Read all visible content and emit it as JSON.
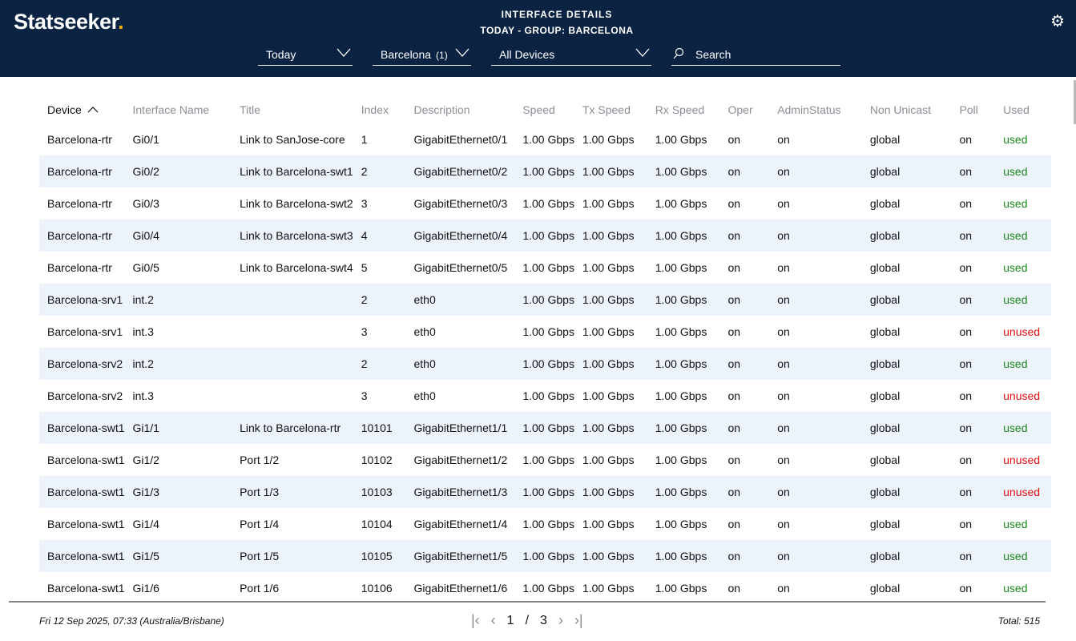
{
  "header": {
    "logo": "Statseeker",
    "title": "INTERFACE DETAILS",
    "subtitle": "TODAY - GROUP: BARCELONA"
  },
  "filters": {
    "time": "Today",
    "group": "Barcelona",
    "group_count": "(1)",
    "devices": "All Devices",
    "search_placeholder": "Search"
  },
  "columns": [
    "Device",
    "Interface Name",
    "Title",
    "Index",
    "Description",
    "Speed",
    "Tx Speed",
    "Rx Speed",
    "Oper",
    "AdminStatus",
    "Non Unicast",
    "Poll",
    "Used"
  ],
  "sort": {
    "column": "Device",
    "direction": "ascending"
  },
  "rows": [
    [
      "Barcelona-rtr",
      "Gi0/1",
      "Link to SanJose-core",
      "1",
      "GigabitEthernet0/1",
      "1.00 Gbps",
      "1.00 Gbps",
      "1.00 Gbps",
      "on",
      "on",
      "global",
      "on",
      "used"
    ],
    [
      "Barcelona-rtr",
      "Gi0/2",
      "Link to Barcelona-swt1",
      "2",
      "GigabitEthernet0/2",
      "1.00 Gbps",
      "1.00 Gbps",
      "1.00 Gbps",
      "on",
      "on",
      "global",
      "on",
      "used"
    ],
    [
      "Barcelona-rtr",
      "Gi0/3",
      "Link to Barcelona-swt2",
      "3",
      "GigabitEthernet0/3",
      "1.00 Gbps",
      "1.00 Gbps",
      "1.00 Gbps",
      "on",
      "on",
      "global",
      "on",
      "used"
    ],
    [
      "Barcelona-rtr",
      "Gi0/4",
      "Link to Barcelona-swt3",
      "4",
      "GigabitEthernet0/4",
      "1.00 Gbps",
      "1.00 Gbps",
      "1.00 Gbps",
      "on",
      "on",
      "global",
      "on",
      "used"
    ],
    [
      "Barcelona-rtr",
      "Gi0/5",
      "Link to Barcelona-swt4",
      "5",
      "GigabitEthernet0/5",
      "1.00 Gbps",
      "1.00 Gbps",
      "1.00 Gbps",
      "on",
      "on",
      "global",
      "on",
      "used"
    ],
    [
      "Barcelona-srv1",
      "int.2",
      "",
      "2",
      "eth0",
      "1.00 Gbps",
      "1.00 Gbps",
      "1.00 Gbps",
      "on",
      "on",
      "global",
      "on",
      "used"
    ],
    [
      "Barcelona-srv1",
      "int.3",
      "",
      "3",
      "eth0",
      "1.00 Gbps",
      "1.00 Gbps",
      "1.00 Gbps",
      "on",
      "on",
      "global",
      "on",
      "unused"
    ],
    [
      "Barcelona-srv2",
      "int.2",
      "",
      "2",
      "eth0",
      "1.00 Gbps",
      "1.00 Gbps",
      "1.00 Gbps",
      "on",
      "on",
      "global",
      "on",
      "used"
    ],
    [
      "Barcelona-srv2",
      "int.3",
      "",
      "3",
      "eth0",
      "1.00 Gbps",
      "1.00 Gbps",
      "1.00 Gbps",
      "on",
      "on",
      "global",
      "on",
      "unused"
    ],
    [
      "Barcelona-swt1",
      "Gi1/1",
      "Link to Barcelona-rtr",
      "10101",
      "GigabitEthernet1/1",
      "1.00 Gbps",
      "1.00 Gbps",
      "1.00 Gbps",
      "on",
      "on",
      "global",
      "on",
      "used"
    ],
    [
      "Barcelona-swt1",
      "Gi1/2",
      "Port 1/2",
      "10102",
      "GigabitEthernet1/2",
      "1.00 Gbps",
      "1.00 Gbps",
      "1.00 Gbps",
      "on",
      "on",
      "global",
      "on",
      "unused"
    ],
    [
      "Barcelona-swt1",
      "Gi1/3",
      "Port 1/3",
      "10103",
      "GigabitEthernet1/3",
      "1.00 Gbps",
      "1.00 Gbps",
      "1.00 Gbps",
      "on",
      "on",
      "global",
      "on",
      "unused"
    ],
    [
      "Barcelona-swt1",
      "Gi1/4",
      "Port 1/4",
      "10104",
      "GigabitEthernet1/4",
      "1.00 Gbps",
      "1.00 Gbps",
      "1.00 Gbps",
      "on",
      "on",
      "global",
      "on",
      "used"
    ],
    [
      "Barcelona-swt1",
      "Gi1/5",
      "Port 1/5",
      "10105",
      "GigabitEthernet1/5",
      "1.00 Gbps",
      "1.00 Gbps",
      "1.00 Gbps",
      "on",
      "on",
      "global",
      "on",
      "used"
    ],
    [
      "Barcelona-swt1",
      "Gi1/6",
      "Port 1/6",
      "10106",
      "GigabitEthernet1/6",
      "1.00 Gbps",
      "1.00 Gbps",
      "1.00 Gbps",
      "on",
      "on",
      "global",
      "on",
      "used"
    ]
  ],
  "footer": {
    "timestamp": "Fri 12 Sep 2025, 07:33 (Australia/Brisbane)",
    "page": "1",
    "separator": "/",
    "pages": "3",
    "total": "Total: 515"
  },
  "colors": {
    "header_bg": "#0b2342",
    "used": "#1a8a1a",
    "unused": "#e01010",
    "logo_dot": "#f2b300"
  }
}
